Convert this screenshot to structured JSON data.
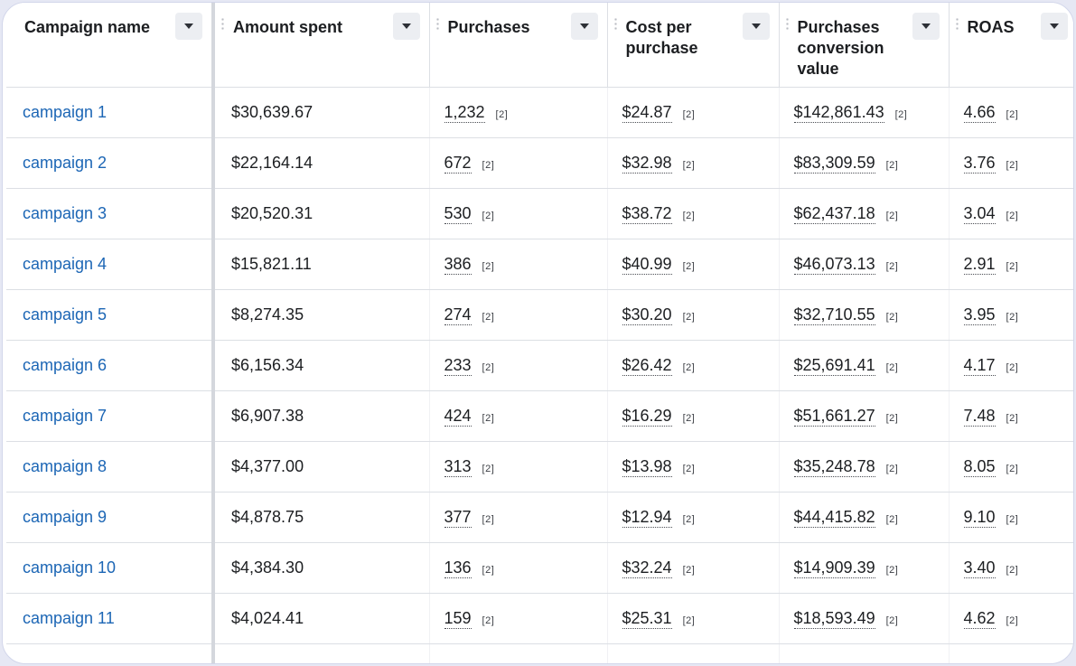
{
  "columns": [
    {
      "label": "Campaign name"
    },
    {
      "label": "Amount spent"
    },
    {
      "label": "Purchases"
    },
    {
      "label": "Cost per purchase"
    },
    {
      "label": "Purchases conversion value"
    },
    {
      "label": "ROAS"
    }
  ],
  "ref_marker": "[2]",
  "rows": [
    {
      "name": "campaign 1",
      "amount": "$30,639.67",
      "purchases": "1,232",
      "cpp": "$24.87",
      "value": "$142,861.43",
      "roas": "4.66"
    },
    {
      "name": "campaign 2",
      "amount": "$22,164.14",
      "purchases": "672",
      "cpp": "$32.98",
      "value": "$83,309.59",
      "roas": "3.76"
    },
    {
      "name": "campaign 3",
      "amount": "$20,520.31",
      "purchases": "530",
      "cpp": "$38.72",
      "value": "$62,437.18",
      "roas": "3.04"
    },
    {
      "name": "campaign 4",
      "amount": "$15,821.11",
      "purchases": "386",
      "cpp": "$40.99",
      "value": "$46,073.13",
      "roas": "2.91"
    },
    {
      "name": "campaign 5",
      "amount": "$8,274.35",
      "purchases": "274",
      "cpp": "$30.20",
      "value": "$32,710.55",
      "roas": "3.95"
    },
    {
      "name": "campaign 6",
      "amount": "$6,156.34",
      "purchases": "233",
      "cpp": "$26.42",
      "value": "$25,691.41",
      "roas": "4.17"
    },
    {
      "name": "campaign 7",
      "amount": "$6,907.38",
      "purchases": "424",
      "cpp": "$16.29",
      "value": "$51,661.27",
      "roas": "7.48"
    },
    {
      "name": "campaign 8",
      "amount": "$4,377.00",
      "purchases": "313",
      "cpp": "$13.98",
      "value": "$35,248.78",
      "roas": "8.05"
    },
    {
      "name": "campaign 9",
      "amount": "$4,878.75",
      "purchases": "377",
      "cpp": "$12.94",
      "value": "$44,415.82",
      "roas": "9.10"
    },
    {
      "name": "campaign 10",
      "amount": "$4,384.30",
      "purchases": "136",
      "cpp": "$32.24",
      "value": "$14,909.39",
      "roas": "3.40"
    },
    {
      "name": "campaign 11",
      "amount": "$4,024.41",
      "purchases": "159",
      "cpp": "$25.31",
      "value": "$18,593.49",
      "roas": "4.62"
    }
  ],
  "colors": {
    "link": "#1c66b5",
    "text": "#1c1e21",
    "border": "#dcdfe4",
    "frame_bg": "#e6e8f4"
  },
  "icons": {
    "sort": "caret-down-icon",
    "drag": "drag-handle-icon"
  }
}
